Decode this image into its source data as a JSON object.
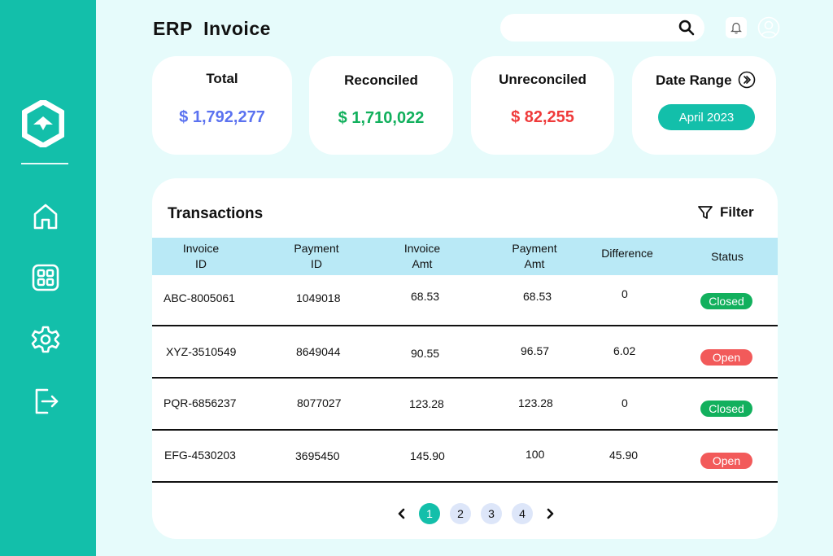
{
  "header": {
    "title": "ERP  Invoice",
    "search_value": ""
  },
  "colors": {
    "brand": "#13bfaa",
    "total": "#5b72f0",
    "reconciled": "#12b05d",
    "unreconciled": "#ef3a3a",
    "closed": "#12b05d",
    "open": "#f25a5a"
  },
  "sidebar": {
    "items": [
      {
        "icon": "home-icon"
      },
      {
        "icon": "dashboard-grid-icon"
      },
      {
        "icon": "settings-gear-icon"
      },
      {
        "icon": "logout-icon"
      }
    ]
  },
  "summary": {
    "total": {
      "label": "Total",
      "value": "$ 1,792,277"
    },
    "reconciled": {
      "label": "Reconciled",
      "value": "$ 1,710,022"
    },
    "unreconciled": {
      "label": "Unreconciled",
      "value": "$ 82,255"
    },
    "date_range": {
      "label": "Date Range",
      "value": "April 2023"
    }
  },
  "transactions": {
    "title": "Transactions",
    "filter_label": "Filter",
    "columns": [
      "Invoice\nID",
      "Payment\nID",
      "Invoice\nAmt",
      "Payment\nAmt",
      "Difference",
      "Status"
    ],
    "rows": [
      {
        "invoice_id": "ABC-8005061",
        "payment_id": "1049018",
        "invoice_amt": "68.53",
        "payment_amt": "68.53",
        "difference": "0",
        "status": "Closed"
      },
      {
        "invoice_id": "XYZ-3510549",
        "payment_id": "8649044",
        "invoice_amt": "90.55",
        "payment_amt": "96.57",
        "difference": "6.02",
        "status": "Open"
      },
      {
        "invoice_id": "PQR-6856237",
        "payment_id": "8077027",
        "invoice_amt": "123.28",
        "payment_amt": "123.28",
        "difference": "0",
        "status": "Closed"
      },
      {
        "invoice_id": "EFG-4530203",
        "payment_id": "3695450",
        "invoice_amt": "145.90",
        "payment_amt": "100",
        "difference": "45.90",
        "status": "Open"
      }
    ]
  },
  "pagination": {
    "pages": [
      "1",
      "2",
      "3",
      "4"
    ],
    "current": "1"
  }
}
